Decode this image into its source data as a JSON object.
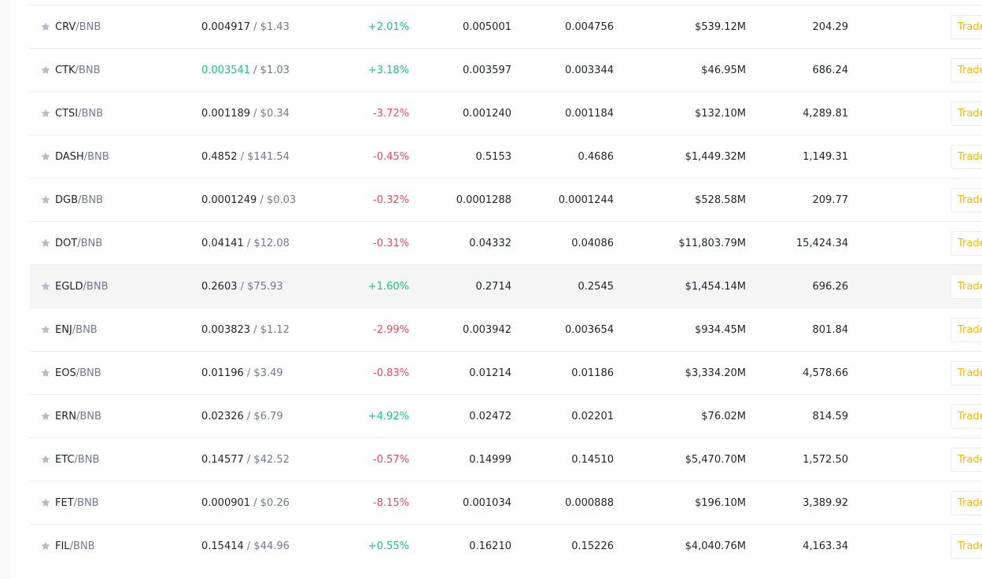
{
  "colors": {
    "up": "#0ecb81",
    "down": "#f6465d",
    "accent": "#f0b90b",
    "muted": "#707a8a"
  },
  "trade_label": "Trade",
  "rows": [
    {
      "base": "CRV",
      "quote": "/BNB",
      "price": "0.004917",
      "usd": "/ $1.43",
      "change": "+2.01%",
      "dir": "up",
      "high": "0.005001",
      "low": "0.004756",
      "mcap": "$539.12M",
      "vol": "204.29"
    },
    {
      "base": "CTK",
      "quote": "/BNB",
      "price": "0.003541",
      "usd": "/ $1.03",
      "change": "+3.18%",
      "dir": "up",
      "price_up": true,
      "high": "0.003597",
      "low": "0.003344",
      "mcap": "$46.95M",
      "vol": "686.24"
    },
    {
      "base": "CTSI",
      "quote": "/BNB",
      "price": "0.001189",
      "usd": "/ $0.34",
      "change": "-3.72%",
      "dir": "down",
      "high": "0.001240",
      "low": "0.001184",
      "mcap": "$132.10M",
      "vol": "4,289.81"
    },
    {
      "base": "DASH",
      "quote": "/BNB",
      "price": "0.4852",
      "usd": "/ $141.54",
      "change": "-0.45%",
      "dir": "down",
      "high": "0.5153",
      "low": "0.4686",
      "mcap": "$1,449.32M",
      "vol": "1,149.31"
    },
    {
      "base": "DGB",
      "quote": "/BNB",
      "price": "0.0001249",
      "usd": "/ $0.03",
      "change": "-0.32%",
      "dir": "down",
      "high": "0.0001288",
      "low": "0.0001244",
      "mcap": "$528.58M",
      "vol": "209.77"
    },
    {
      "base": "DOT",
      "quote": "/BNB",
      "price": "0.04141",
      "usd": "/ $12.08",
      "change": "-0.31%",
      "dir": "down",
      "high": "0.04332",
      "low": "0.04086",
      "mcap": "$11,803.79M",
      "vol": "15,424.34"
    },
    {
      "base": "EGLD",
      "quote": "/BNB",
      "price": "0.2603",
      "usd": "/ $75.93",
      "change": "+1.60%",
      "dir": "up",
      "hover": true,
      "high": "0.2714",
      "low": "0.2545",
      "mcap": "$1,454.14M",
      "vol": "696.26"
    },
    {
      "base": "ENJ",
      "quote": "/BNB",
      "price": "0.003823",
      "usd": "/ $1.12",
      "change": "-2.99%",
      "dir": "down",
      "high": "0.003942",
      "low": "0.003654",
      "mcap": "$934.45M",
      "vol": "801.84"
    },
    {
      "base": "EOS",
      "quote": "/BNB",
      "price": "0.01196",
      "usd": "/ $3.49",
      "change": "-0.83%",
      "dir": "down",
      "high": "0.01214",
      "low": "0.01186",
      "mcap": "$3,334.20M",
      "vol": "4,578.66"
    },
    {
      "base": "ERN",
      "quote": "/BNB",
      "price": "0.02326",
      "usd": "/ $6.79",
      "change": "+4.92%",
      "dir": "up",
      "high": "0.02472",
      "low": "0.02201",
      "mcap": "$76.02M",
      "vol": "814.59"
    },
    {
      "base": "ETC",
      "quote": "/BNB",
      "price": "0.14577",
      "usd": "/ $42.52",
      "change": "-0.57%",
      "dir": "down",
      "high": "0.14999",
      "low": "0.14510",
      "mcap": "$5,470.70M",
      "vol": "1,572.50"
    },
    {
      "base": "FET",
      "quote": "/BNB",
      "price": "0.000901",
      "usd": "/ $0.26",
      "change": "-8.15%",
      "dir": "down",
      "high": "0.001034",
      "low": "0.000888",
      "mcap": "$196.10M",
      "vol": "3,389.92"
    },
    {
      "base": "FIL",
      "quote": "/BNB",
      "price": "0.15414",
      "usd": "/ $44.96",
      "change": "+0.55%",
      "dir": "up",
      "high": "0.16210",
      "low": "0.15226",
      "mcap": "$4,040.76M",
      "vol": "4,163.34"
    }
  ]
}
